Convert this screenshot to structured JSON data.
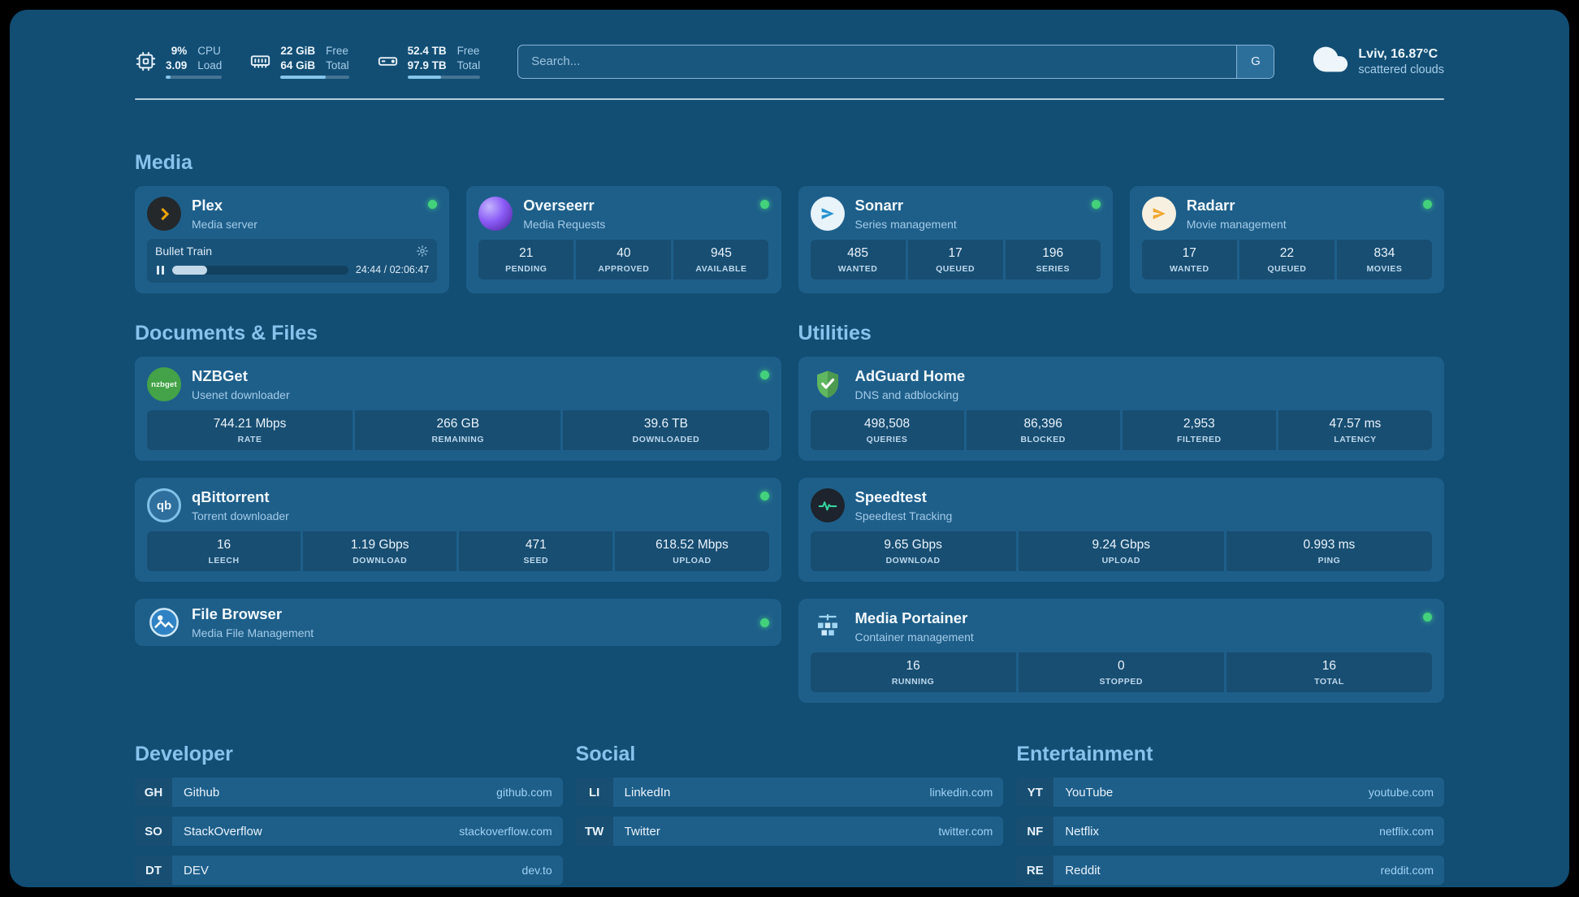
{
  "colors": {
    "background": "#124e74",
    "card": "#1e5f8a",
    "accent": "#86c5ec",
    "heading": "#87c3ec",
    "status_online": "#43d17c",
    "domain_link": "#9fd2f4",
    "plex_orange": "#eba10b",
    "overseerr_purple": "#8b5cf6",
    "sonarr_blue": "#2792cf",
    "radarr_orange": "#f0a62f",
    "nzbget_green": "#44a248",
    "adguard_green": "#57a85c",
    "speedtest_green": "#35d49e",
    "portainer_blue": "#9fd4f2"
  },
  "icons": {
    "nzbget_text": "nzbget",
    "qb_text": "qb"
  },
  "topbar": {
    "cpu": {
      "percent": "9%",
      "load": "3.09",
      "label_line1": "CPU",
      "label_line2": "Load",
      "bar_pct": 9
    },
    "memory": {
      "free": "22 GiB",
      "total": "64 GiB",
      "free_label": "Free",
      "total_label": "Total",
      "bar_pct": 66
    },
    "disk": {
      "free": "52.4 TB",
      "total": "97.9 TB",
      "free_label": "Free",
      "total_label": "Total",
      "bar_pct": 46
    },
    "search": {
      "placeholder": "Search...",
      "provider_button": "G"
    },
    "weather": {
      "location": "Lviv, 16.87°C",
      "condition": "scattered clouds"
    }
  },
  "sections": {
    "media": {
      "title": "Media",
      "plex": {
        "name": "Plex",
        "description": "Media server",
        "now_playing": {
          "title": "Bullet Train",
          "time": "24:44 / 02:06:47",
          "progress_pct": 20
        }
      },
      "overseerr": {
        "name": "Overseerr",
        "description": "Media Requests",
        "stats": [
          {
            "value": "21",
            "label": "PENDING"
          },
          {
            "value": "40",
            "label": "APPROVED"
          },
          {
            "value": "945",
            "label": "AVAILABLE"
          }
        ]
      },
      "sonarr": {
        "name": "Sonarr",
        "description": "Series management",
        "stats": [
          {
            "value": "485",
            "label": "WANTED"
          },
          {
            "value": "17",
            "label": "QUEUED"
          },
          {
            "value": "196",
            "label": "SERIES"
          }
        ]
      },
      "radarr": {
        "name": "Radarr",
        "description": "Movie management",
        "stats": [
          {
            "value": "17",
            "label": "WANTED"
          },
          {
            "value": "22",
            "label": "QUEUED"
          },
          {
            "value": "834",
            "label": "MOVIES"
          }
        ]
      }
    },
    "documents": {
      "title": "Documents & Files",
      "nzbget": {
        "name": "NZBGet",
        "description": "Usenet downloader",
        "stats": [
          {
            "value": "744.21 Mbps",
            "label": "RATE"
          },
          {
            "value": "266 GB",
            "label": "REMAINING"
          },
          {
            "value": "39.6 TB",
            "label": "DOWNLOADED"
          }
        ]
      },
      "qbittorrent": {
        "name": "qBittorrent",
        "description": "Torrent downloader",
        "stats": [
          {
            "value": "16",
            "label": "LEECH"
          },
          {
            "value": "1.19 Gbps",
            "label": "DOWNLOAD"
          },
          {
            "value": "471",
            "label": "SEED"
          },
          {
            "value": "618.52 Mbps",
            "label": "UPLOAD"
          }
        ]
      },
      "filebrowser": {
        "name": "File Browser",
        "description": "Media File Management"
      }
    },
    "utilities": {
      "title": "Utilities",
      "adguard": {
        "name": "AdGuard Home",
        "description": "DNS and adblocking",
        "stats": [
          {
            "value": "498,508",
            "label": "QUERIES"
          },
          {
            "value": "86,396",
            "label": "BLOCKED"
          },
          {
            "value": "2,953",
            "label": "FILTERED"
          },
          {
            "value": "47.57 ms",
            "label": "LATENCY"
          }
        ]
      },
      "speedtest": {
        "name": "Speedtest",
        "description": "Speedtest Tracking",
        "stats": [
          {
            "value": "9.65 Gbps",
            "label": "DOWNLOAD"
          },
          {
            "value": "9.24 Gbps",
            "label": "UPLOAD"
          },
          {
            "value": "0.993 ms",
            "label": "PING"
          }
        ]
      },
      "portainer": {
        "name": "Media Portainer",
        "description": "Container management",
        "stats": [
          {
            "value": "16",
            "label": "RUNNING"
          },
          {
            "value": "0",
            "label": "STOPPED"
          },
          {
            "value": "16",
            "label": "TOTAL"
          }
        ]
      }
    },
    "bookmarks": {
      "developer": {
        "title": "Developer",
        "items": [
          {
            "abbr": "GH",
            "name": "Github",
            "domain": "github.com"
          },
          {
            "abbr": "SO",
            "name": "StackOverflow",
            "domain": "stackoverflow.com"
          },
          {
            "abbr": "DT",
            "name": "DEV",
            "domain": "dev.to"
          }
        ]
      },
      "social": {
        "title": "Social",
        "items": [
          {
            "abbr": "LI",
            "name": "LinkedIn",
            "domain": "linkedin.com"
          },
          {
            "abbr": "TW",
            "name": "Twitter",
            "domain": "twitter.com"
          }
        ]
      },
      "entertainment": {
        "title": "Entertainment",
        "items": [
          {
            "abbr": "YT",
            "name": "YouTube",
            "domain": "youtube.com"
          },
          {
            "abbr": "NF",
            "name": "Netflix",
            "domain": "netflix.com"
          },
          {
            "abbr": "RE",
            "name": "Reddit",
            "domain": "reddit.com"
          }
        ]
      }
    }
  }
}
